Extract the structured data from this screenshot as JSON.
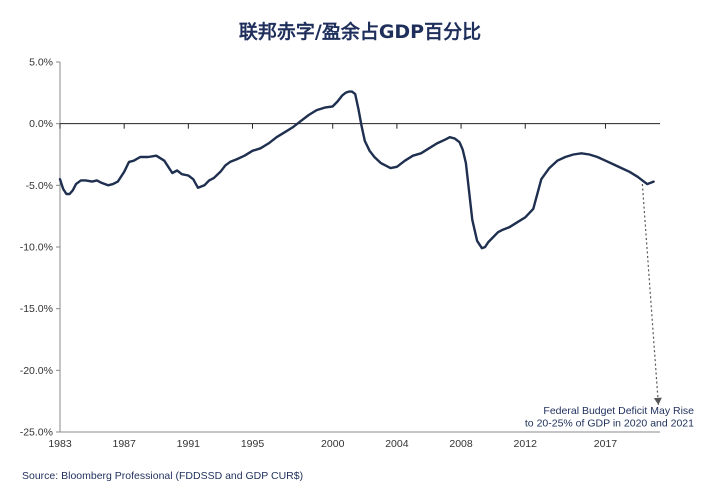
{
  "chart_data": {
    "type": "line",
    "title": "联邦赤字/盈余占GDP百分比",
    "source": "Source: Bloomberg Professional (FDDSSD and GDP CUR$)",
    "xlabel": "",
    "ylabel": "",
    "xlim": [
      1983,
      2020.4
    ],
    "ylim": [
      -25,
      5
    ],
    "x_ticks": [
      1983,
      1987,
      1991,
      1995,
      2000,
      2004,
      2008,
      2012,
      2017
    ],
    "y_ticks": [
      5,
      0,
      -5,
      -10,
      -15,
      -20,
      -25
    ],
    "y_tick_labels": [
      "5.0%",
      "0.0%",
      "-5.0%",
      "-10.0%",
      "-15.0%",
      "-20.0%",
      "-25.0%"
    ],
    "grid": false,
    "line_color": "#1f2f4f",
    "series": [
      {
        "x": [
          1983.0,
          1983.2,
          1983.4,
          1983.6,
          1983.8,
          1984.0,
          1984.3,
          1984.6,
          1985.0,
          1985.3,
          1985.6,
          1986.0,
          1986.3,
          1986.6,
          1987.0,
          1987.3,
          1987.6,
          1988.0,
          1988.5,
          1989.0,
          1989.5,
          1990.0,
          1990.3,
          1990.6,
          1991.0,
          1991.3,
          1991.6,
          1992.0,
          1992.3,
          1992.6,
          1993.0,
          1993.3,
          1993.6,
          1994.0,
          1994.5,
          1995.0,
          1995.5,
          1996.0,
          1996.5,
          1997.0,
          1997.5,
          1998.0,
          1998.5,
          1999.0,
          1999.5,
          2000.0,
          2000.3,
          2000.6,
          2000.8,
          2001.0,
          2001.2,
          2001.4,
          2001.6,
          2001.8,
          2002.0,
          2002.3,
          2002.6,
          2003.0,
          2003.3,
          2003.6,
          2004.0,
          2004.5,
          2005.0,
          2005.5,
          2006.0,
          2006.5,
          2007.0,
          2007.3,
          2007.6,
          2007.9,
          2008.1,
          2008.3,
          2008.5,
          2008.7,
          2009.0,
          2009.3,
          2009.5,
          2009.7,
          2010.0,
          2010.3,
          2010.6,
          2011.0,
          2011.5,
          2012.0,
          2012.5,
          2013.0,
          2013.5,
          2014.0,
          2014.5,
          2015.0,
          2015.5,
          2016.0,
          2016.5,
          2017.0,
          2017.5,
          2018.0,
          2018.5,
          2019.0,
          2019.3,
          2019.6,
          2019.8,
          2020.0
        ],
        "values": [
          -4.5,
          -5.3,
          -5.7,
          -5.7,
          -5.4,
          -4.9,
          -4.6,
          -4.6,
          -4.7,
          -4.6,
          -4.8,
          -5.0,
          -4.9,
          -4.7,
          -3.9,
          -3.1,
          -3.0,
          -2.7,
          -2.7,
          -2.6,
          -3.0,
          -4.0,
          -3.8,
          -4.1,
          -4.2,
          -4.5,
          -5.2,
          -5.0,
          -4.6,
          -4.4,
          -3.9,
          -3.4,
          -3.1,
          -2.9,
          -2.6,
          -2.2,
          -2.0,
          -1.6,
          -1.1,
          -0.7,
          -0.3,
          0.2,
          0.7,
          1.1,
          1.3,
          1.4,
          1.8,
          2.3,
          2.5,
          2.6,
          2.6,
          2.4,
          1.2,
          -0.2,
          -1.4,
          -2.2,
          -2.7,
          -3.2,
          -3.4,
          -3.6,
          -3.5,
          -3.0,
          -2.6,
          -2.4,
          -2.0,
          -1.6,
          -1.3,
          -1.1,
          -1.2,
          -1.5,
          -2.1,
          -3.2,
          -5.5,
          -7.8,
          -9.5,
          -10.1,
          -10.0,
          -9.6,
          -9.2,
          -8.8,
          -8.6,
          -8.4,
          -8.0,
          -7.6,
          -6.9,
          -4.5,
          -3.6,
          -3.0,
          -2.7,
          -2.5,
          -2.4,
          -2.5,
          -2.7,
          -3.0,
          -3.3,
          -3.6,
          -3.9,
          -4.3,
          -4.6,
          -4.9,
          -4.8,
          -4.7
        ]
      }
    ],
    "annotation": {
      "lines": [
        "Federal Budget Deficit May Rise",
        "to 20-25% of GDP in 2020 and 2021"
      ],
      "arrow_from": [
        2019.3,
        -4.9
      ],
      "arrow_to": [
        2020.3,
        -22.8
      ]
    }
  }
}
